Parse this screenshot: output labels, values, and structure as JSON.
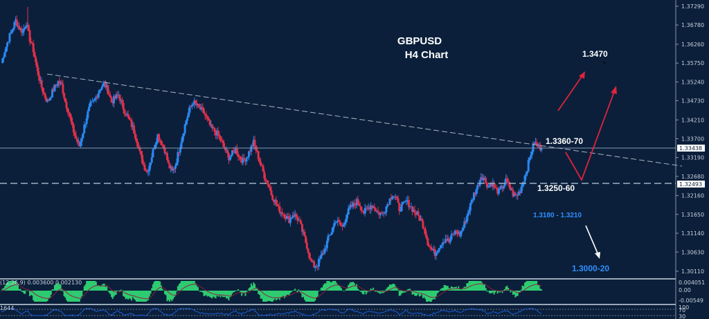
{
  "chart_data": {
    "type": "candlestick",
    "title": "GBPUSD",
    "subtitle": "H4 Chart",
    "symbol": "GBPUSD",
    "timeframe": "H4",
    "ylim": [
      1.2985,
      1.3745
    ],
    "y_ticks": [
      "1.37290",
      "1.36780",
      "1.36260",
      "1.35750",
      "1.35240",
      "1.34730",
      "1.34210",
      "1.33700",
      "1.33190",
      "1.32680",
      "1.32160",
      "1.31650",
      "1.31140",
      "1.30630",
      "1.30110"
    ],
    "current_price_tag": "1.33438",
    "support_price_tag": "1.32493",
    "annotations": {
      "resistance_label": "1.3360-70",
      "support_label": "1.3250-60",
      "lower_support_label": "1.3180 - 1.3210",
      "bear_target_label": "1.3000-20",
      "bull_target_label": "1.3470"
    },
    "trendline": {
      "style": "dashed",
      "from_price": 1.355,
      "to_price": 1.329
    },
    "close_path": [
      1.3575,
      1.361,
      1.364,
      1.3665,
      1.369,
      1.367,
      1.366,
      1.3685,
      1.364,
      1.361,
      1.356,
      1.352,
      1.349,
      1.347,
      1.349,
      1.351,
      1.3525,
      1.3515,
      1.347,
      1.344,
      1.34,
      1.337,
      1.335,
      1.339,
      1.343,
      1.346,
      1.347,
      1.349,
      1.351,
      1.352,
      1.35,
      1.347,
      1.348,
      1.349,
      1.346,
      1.344,
      1.342,
      1.34,
      1.337,
      1.333,
      1.33,
      1.328,
      1.331,
      1.335,
      1.338,
      1.336,
      1.334,
      1.33,
      1.328,
      1.33,
      1.334,
      1.338,
      1.342,
      1.345,
      1.347,
      1.346,
      1.345,
      1.344,
      1.342,
      1.34,
      1.339,
      1.338,
      1.336,
      1.334,
      1.332,
      1.333,
      1.334,
      1.332,
      1.331,
      1.332,
      1.334,
      1.336,
      1.333,
      1.33,
      1.327,
      1.325,
      1.322,
      1.32,
      1.318,
      1.317,
      1.316,
      1.315,
      1.3165,
      1.316,
      1.314,
      1.311,
      1.308,
      1.304,
      1.3025,
      1.303,
      1.305,
      1.307,
      1.31,
      1.312,
      1.315,
      1.314,
      1.313,
      1.316,
      1.318,
      1.319,
      1.32,
      1.319,
      1.317,
      1.318,
      1.319,
      1.3185,
      1.317,
      1.3165,
      1.318,
      1.32,
      1.322,
      1.321,
      1.318,
      1.319,
      1.32,
      1.319,
      1.3175,
      1.3165,
      1.315,
      1.313,
      1.309,
      1.307,
      1.306,
      1.3075,
      1.309,
      1.31,
      1.309,
      1.311,
      1.312,
      1.311,
      1.313,
      1.316,
      1.319,
      1.322,
      1.324,
      1.327,
      1.326,
      1.324,
      1.325,
      1.3235,
      1.3225,
      1.324,
      1.3255,
      1.324,
      1.322,
      1.3215,
      1.323,
      1.326,
      1.329,
      1.333,
      1.336,
      1.335,
      1.3344
    ],
    "macd": {
      "label": "(12,26,9) 0.003600 0.002130",
      "axis_ticks": [
        "0.004051",
        "0.00",
        "-0.00549"
      ]
    },
    "rsi": {
      "label": "1644",
      "axis_ticks": [
        "100",
        "70",
        "30"
      ]
    },
    "colors": {
      "bull": "#2a87f0",
      "bear": "#e0304a",
      "background": "#0b1f3a",
      "macd_hist": "#2ecc71",
      "macd_signal": "#8b2240",
      "rsi_line": "#1e5fd6",
      "arrow_red": "#e0243c",
      "arrow_white": "#ffffff"
    }
  }
}
